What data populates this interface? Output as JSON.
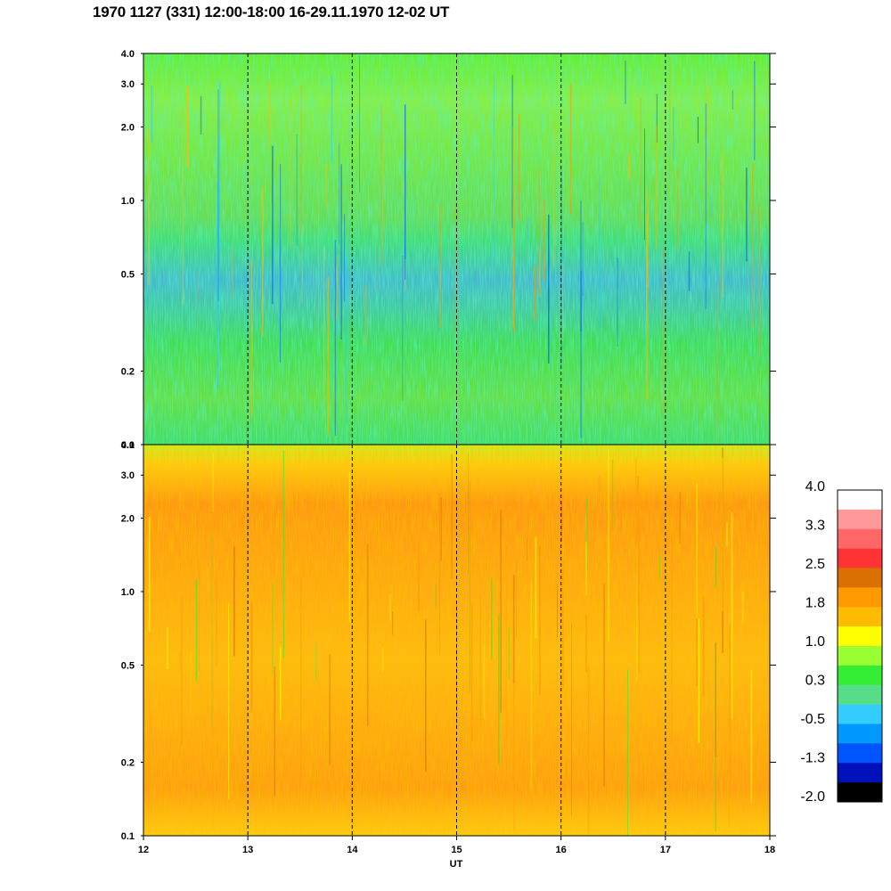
{
  "title": "1970 1127 (331) 12:00-18:00 16-29.11.1970  12-02 UT",
  "chart_data": [
    {
      "type": "heatmap",
      "panel": "upper",
      "x_range": [
        12,
        18
      ],
      "y_range": [
        0.1,
        4.0
      ],
      "y_scale": "log",
      "y_ticks": [
        "0.1",
        "0.2",
        "0.5",
        "1.0",
        "2.0",
        "3.0",
        "4.0"
      ],
      "x_ticks": [
        "12",
        "13",
        "14",
        "15",
        "16",
        "17",
        "18"
      ],
      "grid": "dashed vertical lines at 13, 14, 15, 16, 17",
      "dominant_levels": "0.3 to 1.0 above 0.7; -0.5 to 0.3 between 0.3 and 0.7; 0.3 to 1.0 below 0.3"
    },
    {
      "type": "heatmap",
      "panel": "lower",
      "x_range": [
        12,
        18
      ],
      "y_range": [
        0.1,
        4.0
      ],
      "y_scale": "log",
      "y_ticks": [
        "0.1",
        "0.2",
        "0.5",
        "1.0",
        "2.0",
        "3.0",
        "4.0"
      ],
      "x_ticks": [
        "12",
        "13",
        "14",
        "15",
        "16",
        "17",
        "18"
      ],
      "xlabel": "UT",
      "grid": "dashed vertical lines at 13, 14, 15, 16, 17",
      "dominant_levels": "1.0 to 1.8 throughout; 0.3 to 1.0 near 4.0"
    }
  ],
  "colorbar": {
    "labels": [
      "4.0",
      "3.3",
      "2.5",
      "1.8",
      "1.0",
      "0.3",
      "-0.5",
      "-1.3",
      "-2.0"
    ],
    "colors": [
      "#ffffff",
      "#ff9999",
      "#ff6666",
      "#ff3333",
      "#d97000",
      "#ff9900",
      "#ffbb00",
      "#ffff00",
      "#99ff33",
      "#33ee33",
      "#55dd88",
      "#33ccff",
      "#0099ff",
      "#0055ff",
      "#0011bb",
      "#000000"
    ]
  }
}
